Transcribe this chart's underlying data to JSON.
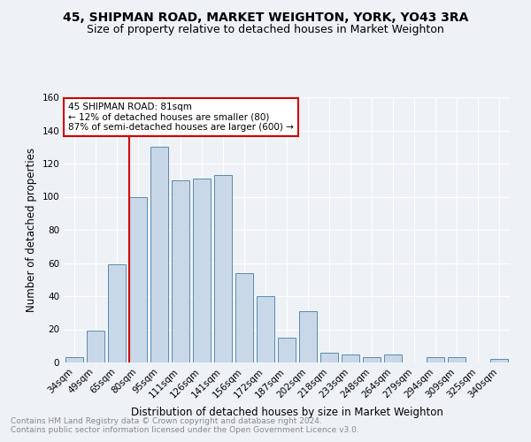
{
  "title1": "45, SHIPMAN ROAD, MARKET WEIGHTON, YORK, YO43 3RA",
  "title2": "Size of property relative to detached houses in Market Weighton",
  "xlabel": "Distribution of detached houses by size in Market Weighton",
  "ylabel": "Number of detached properties",
  "categories": [
    "34sqm",
    "49sqm",
    "65sqm",
    "80sqm",
    "95sqm",
    "111sqm",
    "126sqm",
    "141sqm",
    "156sqm",
    "172sqm",
    "187sqm",
    "202sqm",
    "218sqm",
    "233sqm",
    "248sqm",
    "264sqm",
    "279sqm",
    "294sqm",
    "309sqm",
    "325sqm",
    "340sqm"
  ],
  "values": [
    3,
    19,
    59,
    100,
    130,
    110,
    111,
    113,
    54,
    40,
    15,
    31,
    6,
    5,
    3,
    5,
    0,
    3,
    3,
    0,
    2
  ],
  "bar_color": "#c8d8e8",
  "bar_edge_color": "#5a8ab0",
  "vline_index": 3,
  "vline_color": "#cc0000",
  "annotation_line1": "45 SHIPMAN ROAD: 81sqm",
  "annotation_line2": "← 12% of detached houses are smaller (80)",
  "annotation_line3": "87% of semi-detached houses are larger (600) →",
  "annotation_box_color": "#ffffff",
  "annotation_box_edge": "#cc0000",
  "footer1": "Contains HM Land Registry data © Crown copyright and database right 2024.",
  "footer2": "Contains public sector information licensed under the Open Government Licence v3.0.",
  "ylim": [
    0,
    160
  ],
  "yticks": [
    0,
    20,
    40,
    60,
    80,
    100,
    120,
    140,
    160
  ],
  "title1_fontsize": 10,
  "title2_fontsize": 9,
  "axis_label_fontsize": 8.5,
  "tick_fontsize": 7.5,
  "annot_fontsize": 7.5,
  "footer_fontsize": 6.5,
  "background_color": "#eef2f7"
}
